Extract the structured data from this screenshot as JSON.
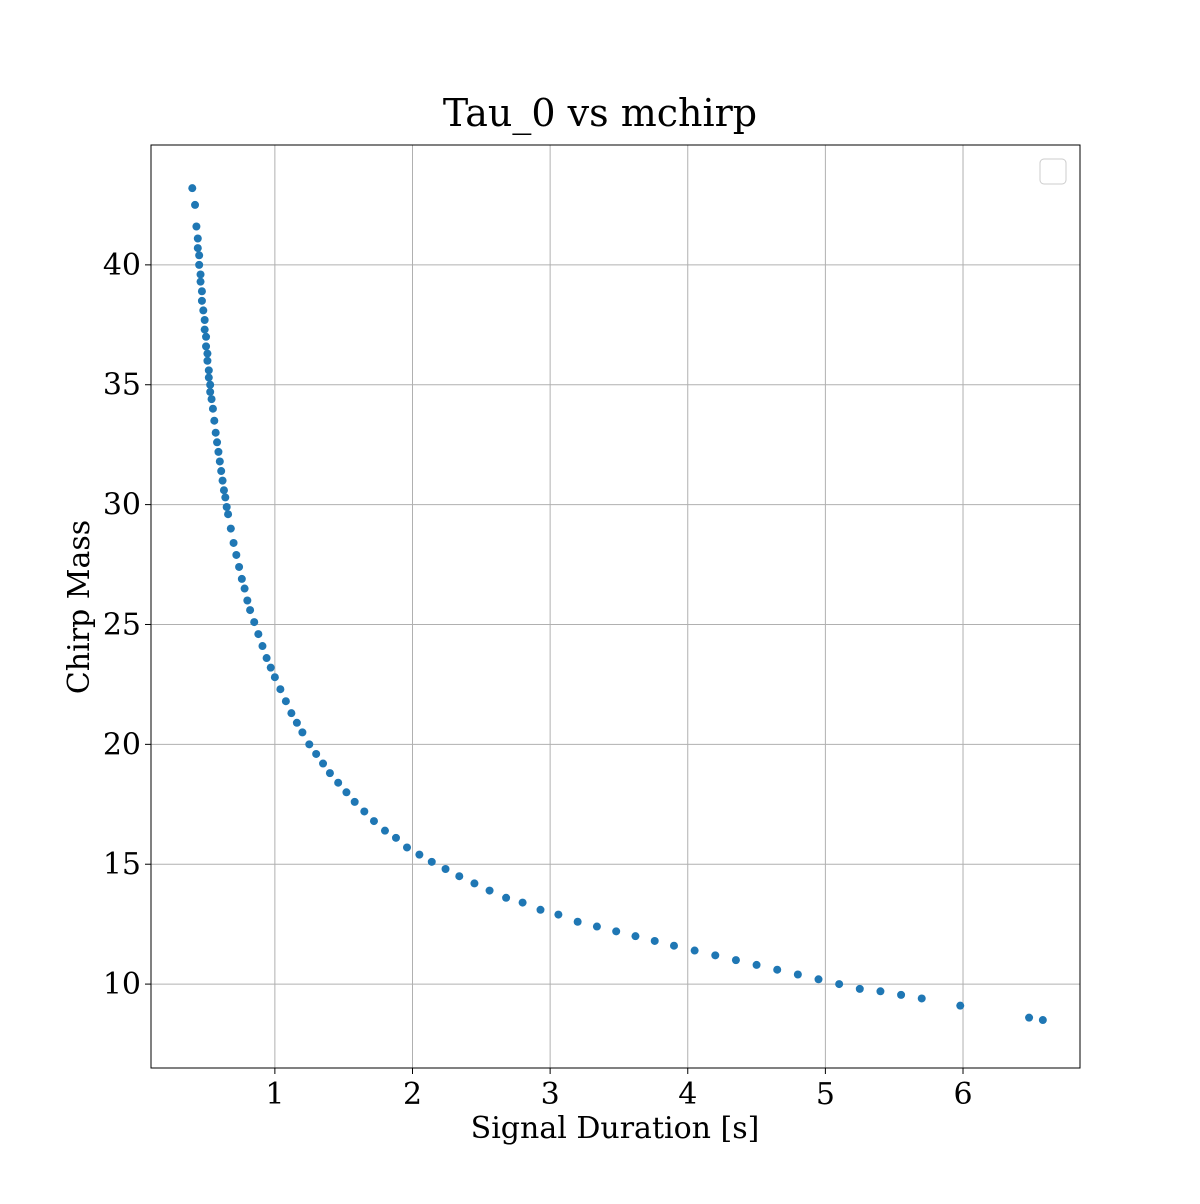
{
  "chart_data": {
    "type": "scatter",
    "title": "Tau_0 vs mchirp",
    "xlabel": "Signal Duration [s]",
    "ylabel": "Chirp Mass",
    "xlim": [
      0.1,
      6.85
    ],
    "ylim": [
      6.5,
      45.0
    ],
    "xticks": [
      1,
      2,
      3,
      4,
      5,
      6
    ],
    "yticks": [
      10,
      15,
      20,
      25,
      30,
      35,
      40
    ],
    "grid": true,
    "legend": "top-right (empty)",
    "colors": {
      "marker": "#1f77b4"
    },
    "series": [
      {
        "x": [
          0.4,
          0.42,
          0.43,
          0.44,
          0.44,
          0.45,
          0.45,
          0.46,
          0.46,
          0.47,
          0.47,
          0.48,
          0.49,
          0.49,
          0.5,
          0.5,
          0.51,
          0.51,
          0.52,
          0.52,
          0.53,
          0.53,
          0.54,
          0.55,
          0.56,
          0.57,
          0.58,
          0.59,
          0.6,
          0.61,
          0.62,
          0.63,
          0.64,
          0.65,
          0.66,
          0.68,
          0.7,
          0.72,
          0.74,
          0.76,
          0.78,
          0.8,
          0.82,
          0.85,
          0.88,
          0.91,
          0.94,
          0.97,
          1.0,
          1.04,
          1.08,
          1.12,
          1.16,
          1.2,
          1.25,
          1.3,
          1.35,
          1.4,
          1.46,
          1.52,
          1.58,
          1.65,
          1.72,
          1.8,
          1.88,
          1.96,
          2.05,
          2.14,
          2.24,
          2.34,
          2.45,
          2.56,
          2.68,
          2.8,
          2.93,
          3.06,
          3.2,
          3.34,
          3.48,
          3.62,
          3.76,
          3.9,
          4.05,
          4.2,
          4.35,
          4.5,
          4.65,
          4.8,
          4.95,
          5.1,
          5.25,
          5.4,
          5.55,
          5.7,
          5.98,
          6.48,
          6.58
        ],
        "y": [
          43.2,
          42.5,
          41.6,
          41.1,
          40.7,
          40.4,
          40.0,
          39.6,
          39.3,
          38.9,
          38.5,
          38.1,
          37.7,
          37.3,
          37.0,
          36.6,
          36.3,
          36.0,
          35.6,
          35.3,
          35.0,
          34.7,
          34.4,
          34.0,
          33.5,
          33.0,
          32.6,
          32.2,
          31.8,
          31.4,
          31.0,
          30.6,
          30.3,
          29.9,
          29.6,
          29.0,
          28.4,
          27.9,
          27.4,
          26.9,
          26.5,
          26.0,
          25.6,
          25.1,
          24.6,
          24.1,
          23.6,
          23.2,
          22.8,
          22.3,
          21.8,
          21.3,
          20.9,
          20.5,
          20.0,
          19.6,
          19.2,
          18.8,
          18.4,
          18.0,
          17.6,
          17.2,
          16.8,
          16.4,
          16.1,
          15.7,
          15.4,
          15.1,
          14.8,
          14.5,
          14.2,
          13.9,
          13.6,
          13.4,
          13.1,
          12.9,
          12.6,
          12.4,
          12.2,
          12.0,
          11.8,
          11.6,
          11.4,
          11.2,
          11.0,
          10.8,
          10.6,
          10.4,
          10.2,
          10.0,
          9.8,
          9.7,
          9.55,
          9.4,
          9.1,
          8.6,
          8.5
        ]
      }
    ]
  }
}
